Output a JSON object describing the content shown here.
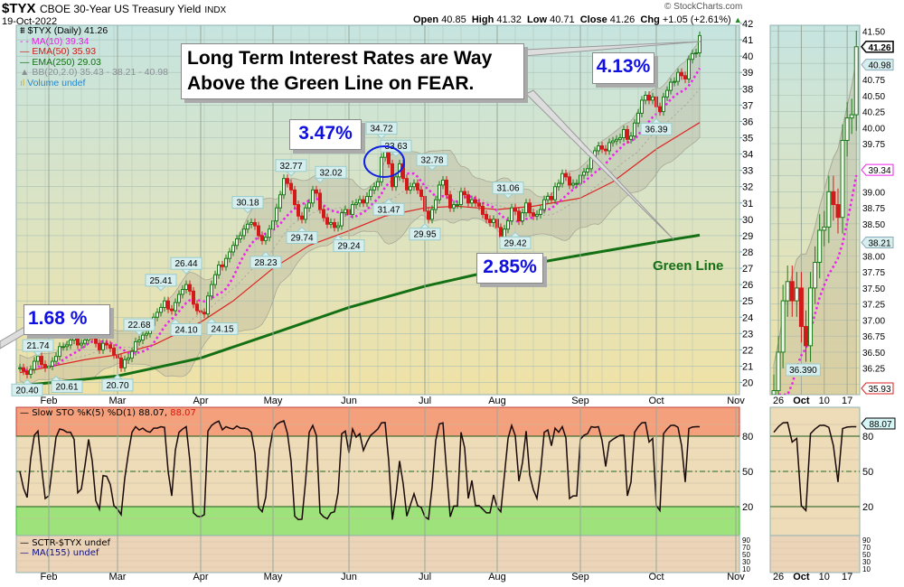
{
  "header": {
    "symbol": "$TYX",
    "name": "CBOE 30-Year US Treasury Yield",
    "exchange": "INDX",
    "date": "19-Oct-2022",
    "copyright": "© StockCharts.com",
    "open_label": "Open",
    "open": "40.85",
    "high_label": "High",
    "high": "41.32",
    "low_label": "Low",
    "low": "40.71",
    "close_label": "Close",
    "close": "41.26",
    "chg_label": "Chg",
    "chg": "+1.05 (+2.61%)",
    "chg_icon": "triangle-up-icon"
  },
  "legend": {
    "price": "$TYX (Daily) 41.26",
    "ma10": "MA(10) 39.34",
    "ema50": "EMA(50) 35.93",
    "ema250": "EMA(250) 29.03",
    "bb": "BB(20,2.0) 35.43 - 38.21 - 40.98",
    "volume": "Volume undef"
  },
  "colors": {
    "up": "#1a7a1a",
    "down": "#d21a1a",
    "ma10": "#ee22ee",
    "ema50": "#dd2222",
    "ema250": "#147014",
    "bb_fill": "#b4b09a",
    "callout_text": "#1010e0",
    "sto_overbought": "#f4a07c",
    "sto_oversold": "#9de27a"
  },
  "annotations": {
    "main_text_line1": "Long Term Interest Rates are Way",
    "main_text_line2": "Above the Green Line on FEAR.",
    "pct_jan": "1.68 %",
    "pct_jun": "3.47%",
    "pct_oct": "4.13%",
    "pct_aug": "2.85%",
    "green_line": "Green Line"
  },
  "stochastic": {
    "legend_main": "Slow STO %K(5) %D(1) 88.07,",
    "legend_d": "88.07",
    "last_value": "88.07",
    "levels": [
      80,
      50,
      20
    ]
  },
  "sctr": {
    "legend": "SCTR-$TYX undef",
    "ma_legend": "MA(155) undef",
    "ticks": [
      "90",
      "70",
      "50",
      "30",
      "10"
    ]
  },
  "chart_data": {
    "type": "candlestick",
    "ylim": [
      20,
      42
    ],
    "yticks_step": 1,
    "x_ticks": [
      "Feb",
      "Mar",
      "Apr",
      "May",
      "Jun",
      "Jul",
      "Aug",
      "Sep",
      "Oct",
      "Nov"
    ],
    "grid": true,
    "closes_by_month": {
      "2022-01": [
        20.9,
        20.7,
        20.5,
        20.8,
        21.3,
        21.6,
        21.1,
        20.9
      ],
      "2022-02": [
        21.0,
        21.3,
        21.6,
        22.2,
        22.2,
        22.3,
        22.6,
        22.8,
        22.3,
        22.4,
        22.6,
        22.9,
        22.7,
        22.4,
        22.0,
        22.4,
        22.3,
        22.1,
        21.7
      ],
      "2022-03": [
        21.5,
        20.9,
        21.4,
        21.5,
        21.9,
        22.5,
        22.6,
        22.9,
        23.0,
        23.5,
        24.0,
        24.3,
        24.6,
        25.0,
        24.5,
        24.4,
        24.9,
        25.4,
        25.7,
        26.0,
        25.6,
        24.8,
        24.4
      ],
      "2022-04": [
        24.3,
        24.2,
        25.3,
        26.0,
        26.6,
        27.2,
        27.1,
        27.6,
        28.0,
        28.4,
        28.8,
        29.0,
        29.4,
        29.7,
        29.8,
        29.6,
        29.0,
        28.7,
        28.9,
        29.4
      ],
      "2022-05": [
        29.9,
        30.7,
        31.5,
        32.5,
        32.2,
        31.8,
        30.9,
        30.2,
        30.0,
        30.7,
        31.0,
        31.8,
        31.6,
        30.6,
        30.1,
        29.7,
        29.8,
        29.5,
        29.6,
        30.4,
        30.6
      ],
      "2022-06": [
        30.3,
        30.9,
        31.0,
        31.2,
        31.0,
        31.4,
        31.8,
        32.0,
        32.3,
        33.8,
        34.3,
        33.4,
        32.0,
        32.6,
        33.4,
        32.5,
        31.8,
        32.0,
        32.2,
        31.8,
        31.4
      ],
      "2022-07": [
        30.5,
        30.0,
        30.6,
        31.2,
        32.1,
        32.4,
        31.5,
        30.7,
        30.9,
        30.9,
        31.7,
        31.5,
        31.0,
        31.2,
        31.0,
        30.8,
        30.3,
        30.0,
        29.8,
        30.0
      ],
      "2022-08": [
        29.5,
        28.9,
        29.4,
        29.9,
        30.7,
        30.5,
        29.9,
        30.4,
        31.0,
        30.4,
        30.2,
        30.3,
        30.6,
        31.2,
        31.4,
        31.2,
        32.0,
        32.2,
        32.8,
        32.6,
        32.1,
        32.2,
        32.2
      ],
      "2022-09": [
        32.7,
        32.9,
        33.1,
        33.8,
        34.2,
        34.5,
        34.3,
        34.2,
        34.7,
        34.8,
        34.9,
        35.0,
        35.5,
        34.9,
        35.1,
        35.9,
        36.5,
        37.3,
        37.6,
        37.3,
        37.5
      ],
      "2022-10": [
        36.9,
        36.6,
        37.5,
        37.9,
        38.4,
        38.45,
        39.0,
        38.8,
        38.6,
        39.8,
        40.15,
        40.2,
        41.26
      ]
    },
    "ema50": [
      [
        "2022-01-20",
        20.6
      ],
      [
        "2022-02-15",
        21.4
      ],
      [
        "2022-03-01",
        21.7
      ],
      [
        "2022-03-15",
        22.3
      ],
      [
        "2022-04-01",
        23.7
      ],
      [
        "2022-04-14",
        25.0
      ],
      [
        "2022-05-02",
        27.0
      ],
      [
        "2022-05-16",
        28.4
      ],
      [
        "2022-06-01",
        29.3
      ],
      [
        "2022-06-15",
        30.2
      ],
      [
        "2022-07-01",
        30.7
      ],
      [
        "2022-07-15",
        30.8
      ],
      [
        "2022-08-01",
        30.6
      ],
      [
        "2022-08-15",
        30.8
      ],
      [
        "2022-09-01",
        31.3
      ],
      [
        "2022-09-15",
        32.3
      ],
      [
        "2022-10-03",
        34.3
      ],
      [
        "2022-10-19",
        35.93
      ]
    ],
    "ema250": [
      [
        "2022-01-20",
        19.8
      ],
      [
        "2022-03-01",
        20.4
      ],
      [
        "2022-04-01",
        21.5
      ],
      [
        "2022-05-02",
        23.0
      ],
      [
        "2022-06-01",
        24.6
      ],
      [
        "2022-07-01",
        25.9
      ],
      [
        "2022-08-01",
        26.9
      ],
      [
        "2022-09-01",
        27.8
      ],
      [
        "2022-10-03",
        28.6
      ],
      [
        "2022-10-19",
        29.03
      ]
    ],
    "pivot_labels": [
      {
        "date": "2022-01-24",
        "value": "20.40",
        "pos": "below"
      },
      {
        "date": "2022-01-27",
        "value": "21.74",
        "pos": "above"
      },
      {
        "date": "2022-02-01",
        "value": "20.61",
        "pos": "below"
      },
      {
        "date": "2022-03-01",
        "value": "20.70",
        "pos": "below"
      },
      {
        "date": "2022-03-09",
        "value": "22.68",
        "pos": "above"
      },
      {
        "date": "2022-03-17",
        "value": "25.41",
        "pos": "above"
      },
      {
        "date": "2022-03-21",
        "value": "24.10",
        "pos": "below"
      },
      {
        "date": "2022-03-28",
        "value": "26.44",
        "pos": "above"
      },
      {
        "date": "2022-04-04",
        "value": "24.15",
        "pos": "below"
      },
      {
        "date": "2022-04-21",
        "value": "30.18",
        "pos": "above"
      },
      {
        "date": "2022-04-28",
        "value": "28.23",
        "pos": "below"
      },
      {
        "date": "2022-05-09",
        "value": "32.77",
        "pos": "above"
      },
      {
        "date": "2022-05-12",
        "value": "29.74",
        "pos": "below"
      },
      {
        "date": "2022-05-17",
        "value": "32.02",
        "pos": "above"
      },
      {
        "date": "2022-05-24",
        "value": "29.24",
        "pos": "below"
      },
      {
        "date": "2022-06-14",
        "value": "34.72",
        "pos": "above"
      },
      {
        "date": "2022-06-16",
        "value": "31.47",
        "pos": "below"
      },
      {
        "date": "2022-06-21",
        "value": "33.63",
        "pos": "above"
      },
      {
        "date": "2022-07-01",
        "value": "29.95",
        "pos": "below"
      },
      {
        "date": "2022-07-06",
        "value": "32.78",
        "pos": "above"
      },
      {
        "date": "2022-08-04",
        "value": "31.06",
        "pos": "above"
      },
      {
        "date": "2022-08-08",
        "value": "29.42",
        "pos": "below"
      },
      {
        "date": "2022-10-03",
        "value": "36.39",
        "pos": "below"
      }
    ],
    "inset": {
      "ylim": [
        36.0,
        41.5
      ],
      "yticks_step": 0.25,
      "x_ticks": [
        "26",
        "Oct",
        "10",
        "17"
      ],
      "low_label": "36.390",
      "price_tags": [
        {
          "value": "41.26",
          "kind": "close"
        },
        {
          "value": "40.98",
          "kind": "bb"
        },
        {
          "value": "39.34",
          "kind": "ma"
        },
        {
          "value": "38.21",
          "kind": "bb"
        },
        {
          "value": "35.93",
          "kind": "ema"
        }
      ]
    }
  }
}
